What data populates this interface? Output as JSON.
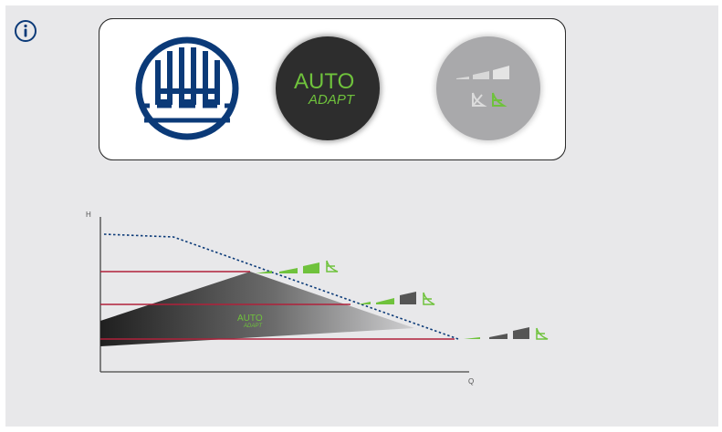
{
  "controls": {
    "auto_label_line1": "AUTO",
    "auto_label_line2": "ADAPT"
  },
  "icons": {
    "info": "info-icon",
    "underfloor_heating": "underfloor-heating-icon",
    "auto_adapt": "auto-adapt-button",
    "constant_curve": "constant-curve-button"
  },
  "colors": {
    "panel_bg": "#e8e8ea",
    "brand_blue": "#0b3a78",
    "accent_green": "#6fc23c",
    "setpoint_red": "#b0213a",
    "dark": "#2d2d2d"
  },
  "chart_data": {
    "type": "diagram",
    "xlabel": "Q",
    "ylabel": "H",
    "inner_label_line1": "AUTO",
    "inner_label_line2": "ADAPT",
    "setpoint_lines": 3,
    "max_curve": "dotted"
  }
}
